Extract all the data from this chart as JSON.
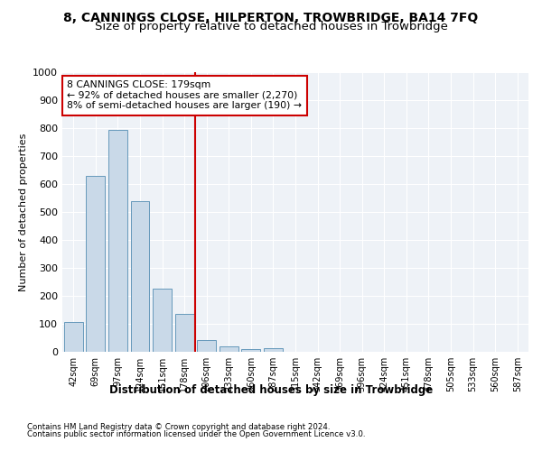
{
  "title": "8, CANNINGS CLOSE, HILPERTON, TROWBRIDGE, BA14 7FQ",
  "subtitle": "Size of property relative to detached houses in Trowbridge",
  "xlabel": "Distribution of detached houses by size in Trowbridge",
  "ylabel": "Number of detached properties",
  "categories": [
    "42sqm",
    "69sqm",
    "97sqm",
    "124sqm",
    "151sqm",
    "178sqm",
    "206sqm",
    "233sqm",
    "260sqm",
    "287sqm",
    "315sqm",
    "342sqm",
    "369sqm",
    "396sqm",
    "424sqm",
    "451sqm",
    "478sqm",
    "505sqm",
    "533sqm",
    "560sqm",
    "587sqm"
  ],
  "values": [
    105,
    630,
    795,
    540,
    225,
    135,
    42,
    18,
    10,
    12,
    0,
    0,
    0,
    0,
    0,
    0,
    0,
    0,
    0,
    0,
    0
  ],
  "bar_color": "#c9d9e8",
  "bar_edge_color": "#6699bb",
  "annotation_line1": "8 CANNINGS CLOSE: 179sqm",
  "annotation_line2": "← 92% of detached houses are smaller (2,270)",
  "annotation_line3": "8% of semi-detached houses are larger (190) →",
  "vline_color": "#cc0000",
  "vline_position": 5.5,
  "annotation_box_color": "#cc0000",
  "ylim": [
    0,
    1000
  ],
  "yticks": [
    0,
    100,
    200,
    300,
    400,
    500,
    600,
    700,
    800,
    900,
    1000
  ],
  "footer1": "Contains HM Land Registry data © Crown copyright and database right 2024.",
  "footer2": "Contains public sector information licensed under the Open Government Licence v3.0.",
  "background_color": "#eef2f7",
  "title_fontsize": 10,
  "subtitle_fontsize": 9.5
}
